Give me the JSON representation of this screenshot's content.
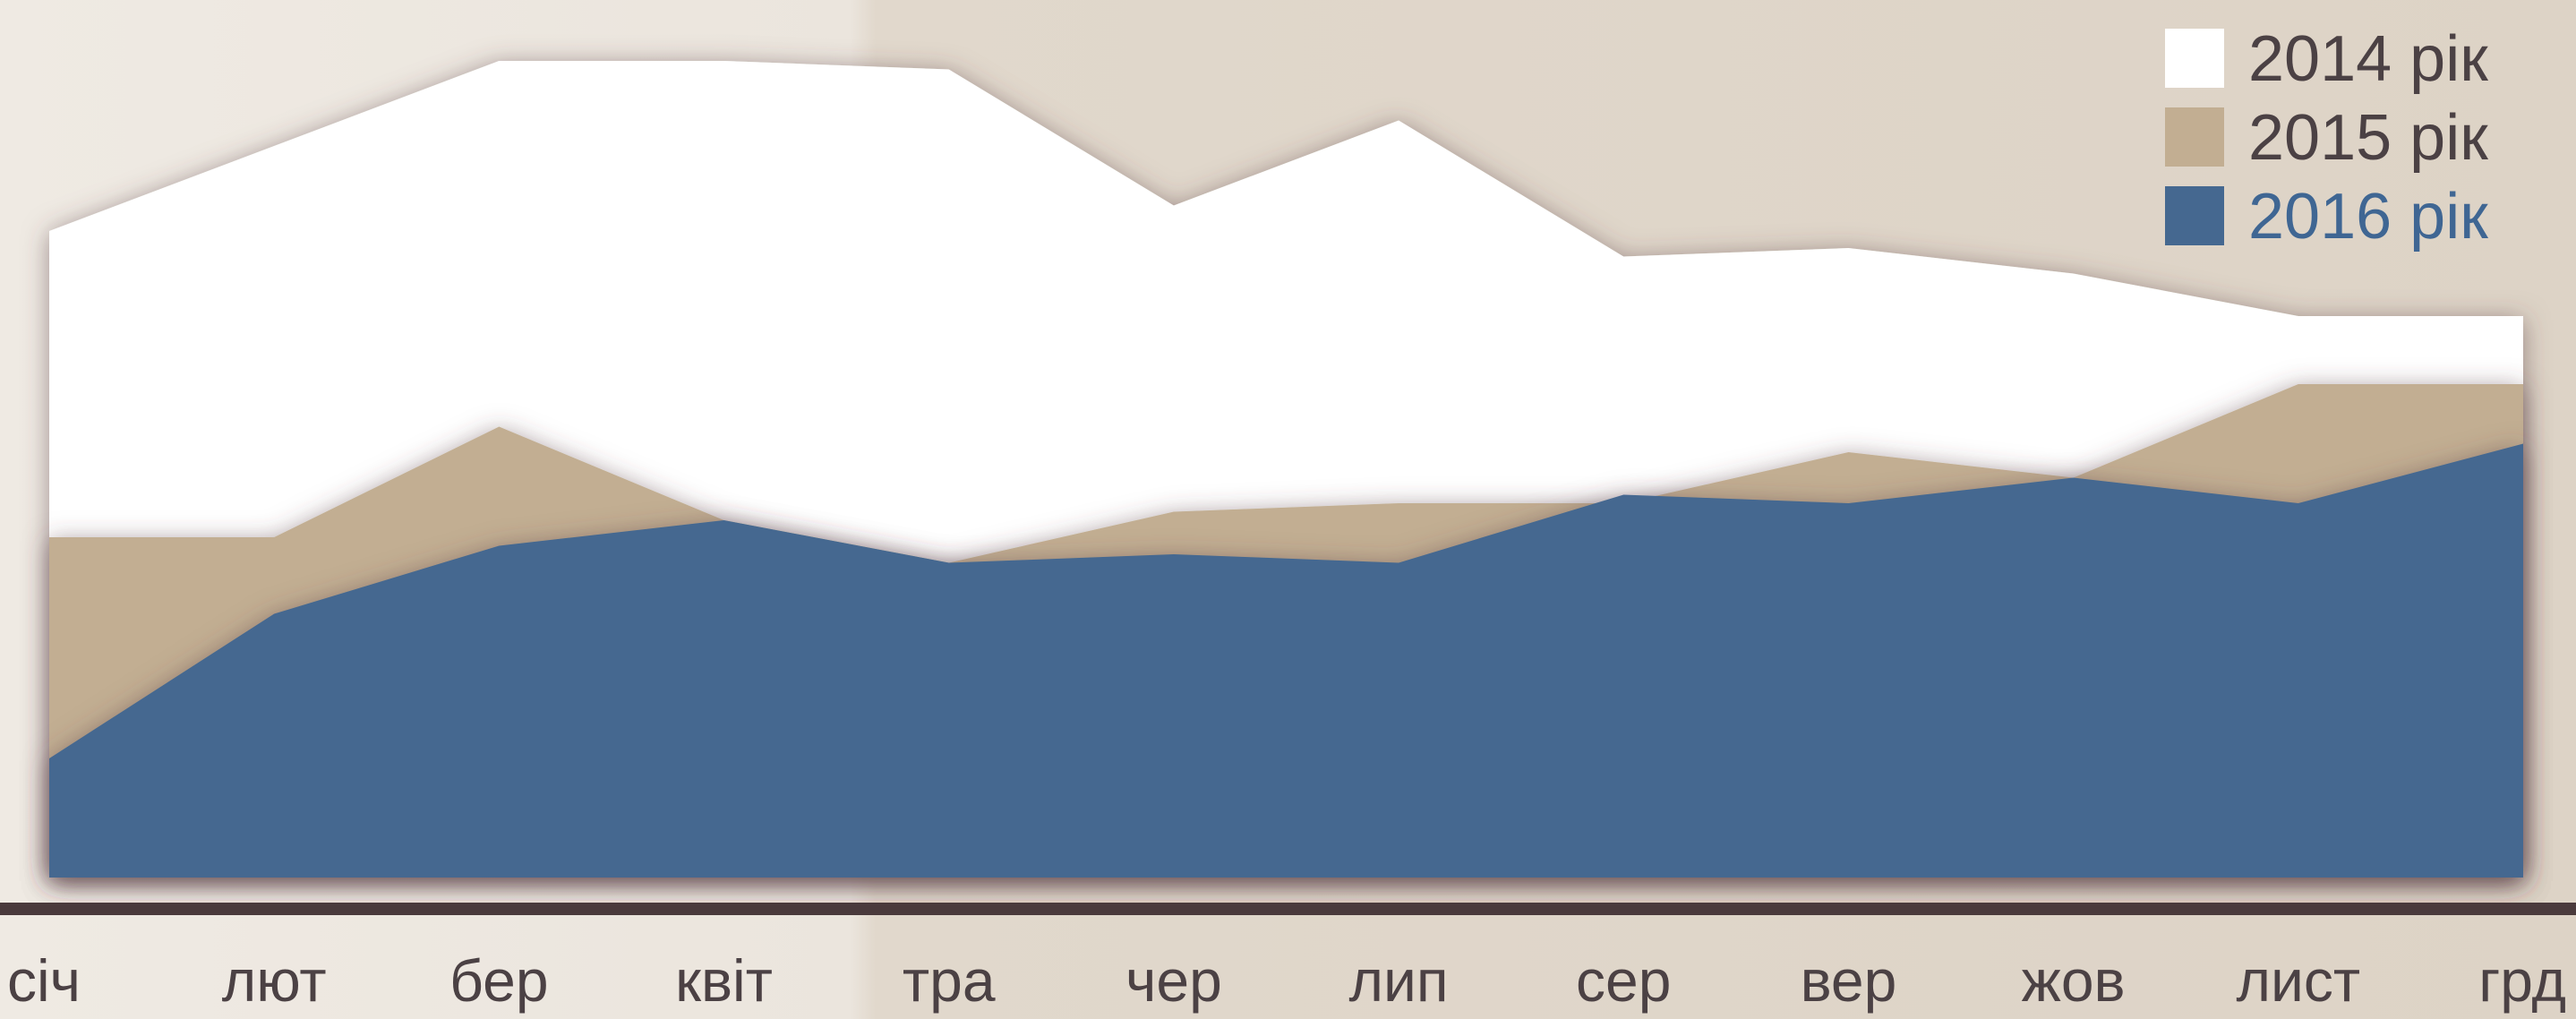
{
  "chart_data": {
    "type": "area",
    "categories": [
      "січ",
      "лют",
      "бер",
      "квіт",
      "тра",
      "чер",
      "лип",
      "сер",
      "вер",
      "жов",
      "лист",
      "грд"
    ],
    "ylim": [
      0,
      100
    ],
    "grid": false,
    "legend_position": "top-right",
    "series": [
      {
        "name": "2014 рік",
        "color": "#ffffff",
        "values": [
          76,
          86,
          96,
          96,
          95,
          79,
          89,
          73,
          74,
          71,
          66,
          66
        ]
      },
      {
        "name": "2015 рік",
        "color": "#c2ae92",
        "values": [
          40,
          40,
          53,
          42,
          37,
          43,
          44,
          44,
          50,
          47,
          58,
          58
        ]
      },
      {
        "name": "2016 рік",
        "color": "#456890",
        "values": [
          14,
          31,
          39,
          42,
          37,
          38,
          37,
          45,
          44,
          47,
          44,
          51
        ]
      }
    ]
  },
  "colors": {
    "background": "#e1d8cc",
    "axis_line": "#4a3a3c",
    "tick_label": "#4b4144",
    "legend_text_default": "#4b4144",
    "legend_text_2016": "#3f6693"
  }
}
